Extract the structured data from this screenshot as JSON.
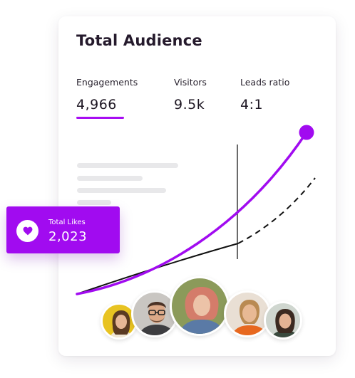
{
  "card": {
    "title": "Total Audience",
    "stats": [
      {
        "label": "Engagements",
        "value": "4,966",
        "active": true
      },
      {
        "label": "Visitors",
        "value": "9.5k",
        "active": false
      },
      {
        "label": "Leads ratio",
        "value": "4:1",
        "active": false
      }
    ]
  },
  "likes_card": {
    "label": "Total Likes",
    "value": "2,023",
    "icon": "heart-icon"
  },
  "colors": {
    "accent": "#a10bf0",
    "text": "#251a2c",
    "placeholder": "#e8e8ea"
  },
  "avatars": [
    {
      "name": "avatar-woman-yellow-background",
      "bg": "#e8c321"
    },
    {
      "name": "avatar-man-glasses",
      "bg": "#c9c6c2"
    },
    {
      "name": "avatar-woman-red-hair",
      "bg": "#8b9a5a"
    },
    {
      "name": "avatar-woman-smiling-orange-top",
      "bg": "#e9dfd4"
    },
    {
      "name": "avatar-woman-dark-hair",
      "bg": "#cfd6cf"
    }
  ]
}
